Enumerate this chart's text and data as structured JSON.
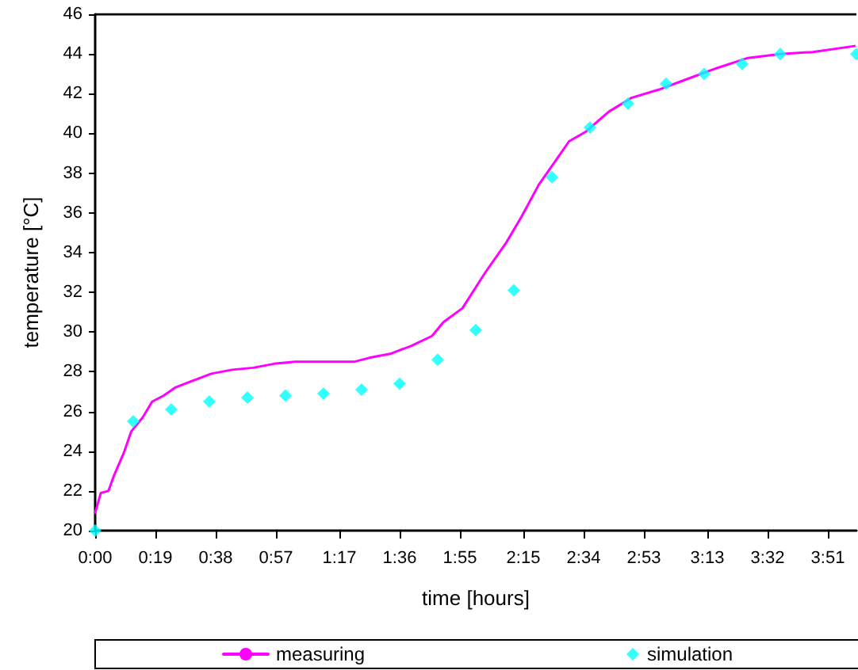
{
  "chart_data": {
    "type": "line",
    "xlabel": "time [hours]",
    "ylabel": "temperature [°C]",
    "xlim": [
      0,
      4
    ],
    "ylim": [
      20,
      46
    ],
    "xticks": [
      {
        "value": 0,
        "label": "0:00"
      },
      {
        "value": 0.3167,
        "label": "0:19"
      },
      {
        "value": 0.6333,
        "label": "0:38"
      },
      {
        "value": 0.95,
        "label": "0:57"
      },
      {
        "value": 1.2833,
        "label": "1:17"
      },
      {
        "value": 1.6,
        "label": "1:36"
      },
      {
        "value": 1.9167,
        "label": "1:55"
      },
      {
        "value": 2.25,
        "label": "2:15"
      },
      {
        "value": 2.5667,
        "label": "2:34"
      },
      {
        "value": 2.8833,
        "label": "2:53"
      },
      {
        "value": 3.2167,
        "label": "3:13"
      },
      {
        "value": 3.5333,
        "label": "3:32"
      },
      {
        "value": 3.85,
        "label": "3:51"
      }
    ],
    "yticks": [
      20,
      22,
      24,
      26,
      28,
      30,
      32,
      34,
      36,
      38,
      40,
      42,
      44,
      46
    ],
    "grid": false,
    "legend": "bottom",
    "series": [
      {
        "name": "measuring",
        "color": "#ff00ff",
        "marker": "none",
        "line_style": "solid",
        "x": [
          0,
          0.03,
          0.07,
          0.1,
          0.15,
          0.19,
          0.25,
          0.3,
          0.36,
          0.42,
          0.5,
          0.61,
          0.72,
          0.83,
          0.94,
          1.05,
          1.22,
          1.36,
          1.44,
          1.55,
          1.66,
          1.77,
          1.83,
          1.93,
          2.05,
          2.16,
          2.24,
          2.33,
          2.41,
          2.49,
          2.58,
          2.7,
          2.82,
          2.96,
          3.1,
          3.27,
          3.43,
          3.6,
          3.77,
          3.99
        ],
        "values": [
          20.9,
          21.9,
          22.0,
          22.8,
          23.9,
          25.0,
          25.7,
          26.5,
          26.8,
          27.2,
          27.5,
          27.9,
          28.1,
          28.2,
          28.4,
          28.5,
          28.5,
          28.5,
          28.7,
          28.9,
          29.3,
          29.8,
          30.5,
          31.2,
          33.0,
          34.5,
          35.8,
          37.4,
          38.5,
          39.6,
          40.1,
          41.1,
          41.8,
          42.2,
          42.7,
          43.3,
          43.8,
          44.0,
          44.1,
          44.4
        ]
      },
      {
        "name": "simulation",
        "type": "scatter",
        "color": "#00ffff",
        "marker": "diamond",
        "x": [
          0,
          0.2,
          0.4,
          0.6,
          0.8,
          1.0,
          1.2,
          1.4,
          1.6,
          1.8,
          2.0,
          2.2,
          2.4,
          2.6,
          2.8,
          3.0,
          3.2,
          3.4,
          3.6,
          4.0
        ],
        "values": [
          20.0,
          25.5,
          26.1,
          26.5,
          26.7,
          26.8,
          26.9,
          27.1,
          27.4,
          28.6,
          30.1,
          32.1,
          37.8,
          40.3,
          41.5,
          42.5,
          43.0,
          43.5,
          44.0,
          44.0
        ]
      }
    ]
  }
}
